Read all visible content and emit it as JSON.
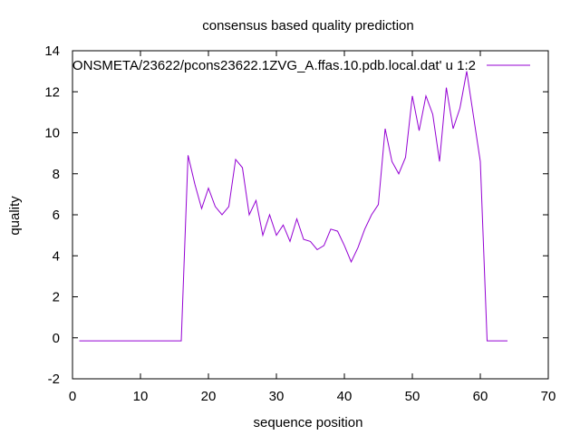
{
  "chart_data": {
    "type": "line",
    "title": "consensus based quality prediction",
    "xlabel": "sequence position",
    "ylabel": "quality",
    "xlim": [
      0,
      70
    ],
    "ylim": [
      -2,
      14
    ],
    "xticks": [
      0,
      10,
      20,
      30,
      40,
      50,
      60,
      70
    ],
    "yticks": [
      -2,
      0,
      2,
      4,
      6,
      8,
      10,
      12,
      14
    ],
    "grid": false,
    "legend_position": "top-right",
    "series": [
      {
        "name": "ONSMETA/23622/pcons23622.1ZVG_A.ffas.10.pdb.local.dat' u 1:2",
        "color": "#9400d3",
        "x": [
          1,
          2,
          3,
          4,
          5,
          6,
          7,
          8,
          9,
          10,
          11,
          12,
          13,
          14,
          15,
          16,
          17,
          18,
          19,
          20,
          21,
          22,
          23,
          24,
          25,
          26,
          27,
          28,
          29,
          30,
          31,
          32,
          33,
          34,
          35,
          36,
          37,
          38,
          39,
          40,
          41,
          42,
          43,
          44,
          45,
          46,
          47,
          48,
          49,
          50,
          51,
          52,
          53,
          54,
          55,
          56,
          57,
          58,
          59,
          60,
          61,
          62,
          63,
          64
        ],
        "y": [
          -0.15,
          -0.15,
          -0.15,
          -0.15,
          -0.15,
          -0.15,
          -0.15,
          -0.15,
          -0.15,
          -0.15,
          -0.15,
          -0.15,
          -0.15,
          -0.15,
          -0.15,
          -0.15,
          8.9,
          7.5,
          6.3,
          7.3,
          6.4,
          6.0,
          6.4,
          8.7,
          8.3,
          6.0,
          6.7,
          5.0,
          6.0,
          5.0,
          5.5,
          4.7,
          5.8,
          4.8,
          4.7,
          4.3,
          4.5,
          5.3,
          5.2,
          4.5,
          3.7,
          4.4,
          5.3,
          6.0,
          6.5,
          10.2,
          8.6,
          8.0,
          8.8,
          11.8,
          10.1,
          11.8,
          10.9,
          8.6,
          12.2,
          10.2,
          11.2,
          13.0,
          10.8,
          8.6,
          -0.15,
          -0.15,
          -0.15,
          -0.15
        ]
      }
    ]
  }
}
